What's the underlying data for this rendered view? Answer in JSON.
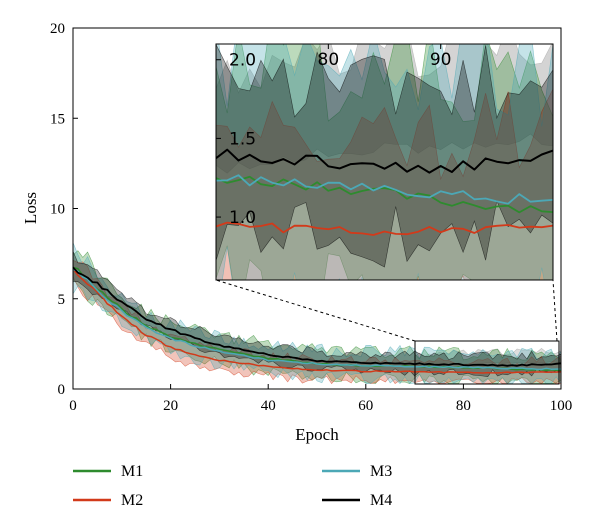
{
  "chart_data": {
    "type": "line",
    "title": "",
    "xlabel": "Epoch",
    "ylabel": "Loss",
    "xlim": [
      0,
      100
    ],
    "ylim": [
      0,
      20
    ],
    "x_ticks": [
      "0",
      "20",
      "40",
      "60",
      "80",
      "100"
    ],
    "y_ticks": [
      "0",
      "5",
      "10",
      "15",
      "20"
    ],
    "grid": false,
    "legend_position": "bottom",
    "series": [
      {
        "name": "M1",
        "color": "#2e8b2e",
        "points": [
          [
            0,
            6.8
          ],
          [
            5,
            5.6
          ],
          [
            10,
            4.4
          ],
          [
            15,
            3.5
          ],
          [
            20,
            2.9
          ],
          [
            25,
            2.5
          ],
          [
            30,
            2.2
          ],
          [
            40,
            1.7
          ],
          [
            50,
            1.4
          ],
          [
            60,
            1.3
          ],
          [
            70,
            1.25
          ],
          [
            80,
            1.2
          ],
          [
            90,
            1.1
          ],
          [
            100,
            1.05
          ]
        ],
        "band_spread": 0.8
      },
      {
        "name": "M2",
        "color": "#d23a1a",
        "points": [
          [
            0,
            6.6
          ],
          [
            5,
            5.3
          ],
          [
            10,
            4.0
          ],
          [
            15,
            3.0
          ],
          [
            20,
            2.3
          ],
          [
            25,
            1.9
          ],
          [
            30,
            1.6
          ],
          [
            40,
            1.25
          ],
          [
            50,
            1.05
          ],
          [
            60,
            0.98
          ],
          [
            70,
            0.95
          ],
          [
            80,
            0.93
          ],
          [
            90,
            0.9
          ],
          [
            100,
            0.95
          ]
        ],
        "band_spread": 0.6
      },
      {
        "name": "M3",
        "color": "#4ca8b6",
        "points": [
          [
            0,
            6.7
          ],
          [
            5,
            5.5
          ],
          [
            10,
            4.3
          ],
          [
            15,
            3.4
          ],
          [
            20,
            2.8
          ],
          [
            25,
            2.4
          ],
          [
            30,
            2.1
          ],
          [
            40,
            1.6
          ],
          [
            50,
            1.4
          ],
          [
            60,
            1.3
          ],
          [
            70,
            1.25
          ],
          [
            80,
            1.2
          ],
          [
            90,
            1.15
          ],
          [
            100,
            1.1
          ]
        ],
        "band_spread": 0.8
      },
      {
        "name": "M4",
        "color": "#000000",
        "points": [
          [
            0,
            6.7
          ],
          [
            5,
            5.8
          ],
          [
            10,
            4.8
          ],
          [
            15,
            3.9
          ],
          [
            20,
            3.3
          ],
          [
            25,
            2.8
          ],
          [
            30,
            2.4
          ],
          [
            40,
            1.9
          ],
          [
            50,
            1.55
          ],
          [
            60,
            1.45
          ],
          [
            70,
            1.4
          ],
          [
            80,
            1.35
          ],
          [
            90,
            1.3
          ],
          [
            100,
            1.4
          ]
        ],
        "band_spread": 0.5
      }
    ],
    "extra_band": {
      "color": "#a0a0a0",
      "points": [
        [
          70,
          1.6
        ],
        [
          80,
          1.7
        ],
        [
          90,
          1.75
        ],
        [
          100,
          1.8
        ]
      ]
    },
    "inset": {
      "x_range": [
        70,
        100
      ],
      "y_range": [
        0.6,
        2.1
      ],
      "x_ticks": [
        "80",
        "90"
      ],
      "y_ticks": [
        "2.0",
        "1.5",
        "1.0"
      ]
    }
  }
}
